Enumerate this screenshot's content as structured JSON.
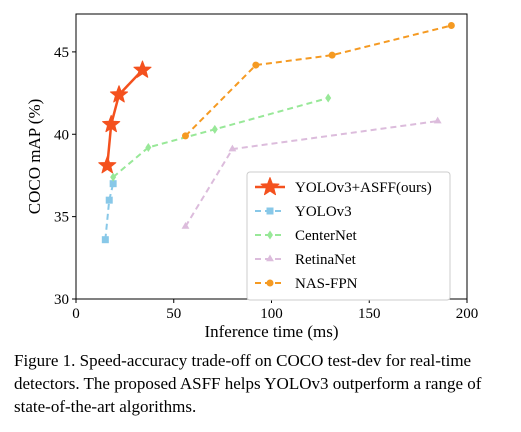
{
  "chart_data": {
    "type": "line",
    "xlabel": "Inference time (ms)",
    "ylabel": "COCO mAP (%)",
    "xlim": [
      0,
      200
    ],
    "ylim": [
      30,
      47.3
    ],
    "xticks": [
      0,
      50,
      100,
      150,
      200
    ],
    "yticks": [
      30,
      35,
      40,
      45
    ],
    "grid": false,
    "legend_position": "center-right",
    "series": [
      {
        "name": "YOLOv3+ASFF(ours)",
        "color": "#f4511e",
        "line": "solid",
        "marker": "star",
        "x": [
          16,
          18,
          22,
          34
        ],
        "y": [
          38.1,
          40.6,
          42.4,
          43.9
        ]
      },
      {
        "name": "YOLOv3",
        "color": "#88c8e8",
        "line": "dashed",
        "marker": "square",
        "x": [
          15,
          17,
          19
        ],
        "y": [
          33.6,
          36.0,
          37.0
        ]
      },
      {
        "name": "CenterNet",
        "color": "#98e898",
        "line": "dashed",
        "marker": "diamond",
        "x": [
          19,
          37,
          71,
          129
        ],
        "y": [
          37.4,
          39.2,
          40.3,
          42.2
        ]
      },
      {
        "name": "RetinaNet",
        "color": "#dcbcdc",
        "line": "dashed",
        "marker": "triangle",
        "x": [
          56,
          80,
          185
        ],
        "y": [
          34.4,
          39.1,
          40.8
        ]
      },
      {
        "name": "NAS-FPN",
        "color": "#f59a22",
        "line": "dashed",
        "marker": "circle",
        "x": [
          56,
          92,
          131,
          192
        ],
        "y": [
          39.9,
          44.2,
          44.8,
          46.6
        ]
      }
    ]
  },
  "caption": "Figure 1. Speed-accuracy trade-off on COCO test-dev for real-time detectors. The proposed ASFF helps YOLOv3 outperform a range of state-of-the-art algorithms."
}
